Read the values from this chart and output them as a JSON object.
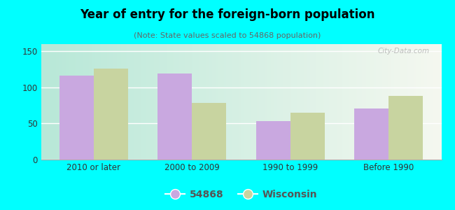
{
  "title": "Year of entry for the foreign-born population",
  "subtitle": "(Note: State values scaled to 54868 population)",
  "categories": [
    "2010 or later",
    "2000 to 2009",
    "1990 to 1999",
    "Before 1990"
  ],
  "values_54868": [
    116,
    119,
    53,
    71
  ],
  "values_wisconsin": [
    126,
    79,
    65,
    88
  ],
  "bar_color_54868": "#c9a8e0",
  "bar_color_wisconsin": "#c8d4a0",
  "background_color": "#00ffff",
  "plot_bg_left": "#b8e8d8",
  "plot_bg_right": "#f5f8f0",
  "ylim": [
    0,
    160
  ],
  "yticks": [
    0,
    50,
    100,
    150
  ],
  "legend_label_1": "54868",
  "legend_label_2": "Wisconsin",
  "bar_width": 0.35,
  "watermark": "City-Data.com"
}
